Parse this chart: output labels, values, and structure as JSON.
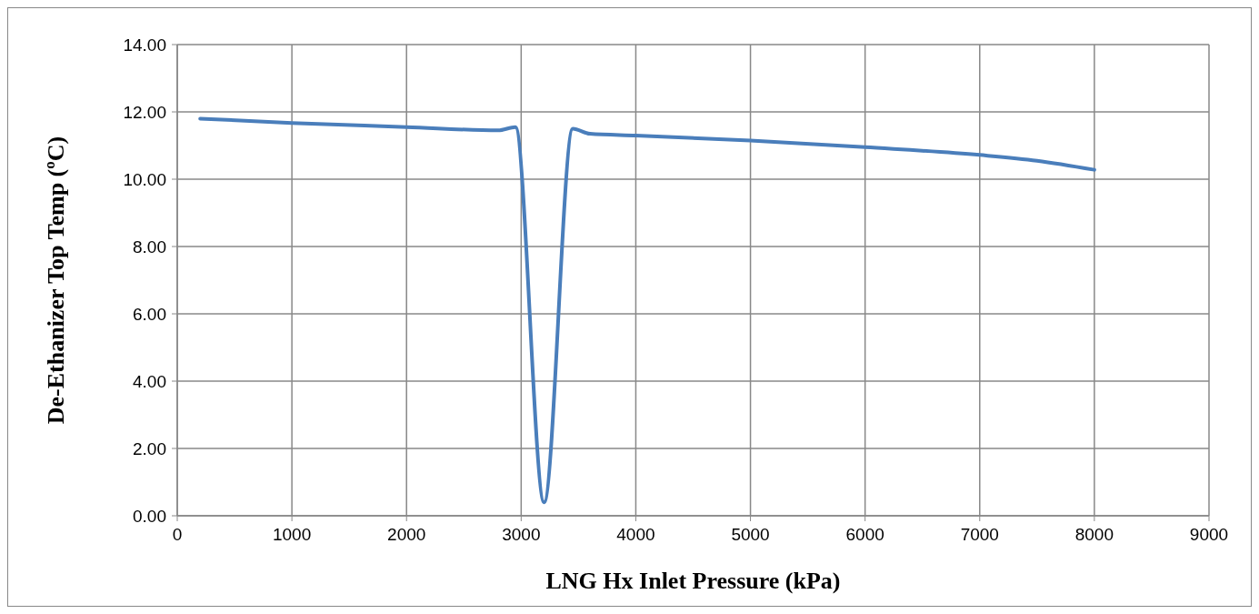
{
  "chart_data": {
    "type": "line",
    "xlabel": "LNG Hx Inlet Pressure (kPa)",
    "ylabel": "De-Ethanizer Top Temp (ºC)",
    "x": [
      200,
      1000,
      2000,
      2800,
      2950,
      3200,
      3450,
      3600,
      4000,
      5000,
      6000,
      7000,
      7500,
      8000
    ],
    "series": [
      {
        "color": "#4a7ebb",
        "values": [
          11.8,
          11.67,
          11.55,
          11.45,
          11.55,
          0.4,
          11.5,
          11.35,
          11.3,
          11.15,
          10.95,
          10.72,
          10.55,
          10.28
        ]
      }
    ],
    "xlim": [
      0,
      9000
    ],
    "xticks": [
      0,
      1000,
      2000,
      3000,
      4000,
      5000,
      6000,
      7000,
      8000,
      9000
    ],
    "ylim": [
      0,
      14
    ],
    "yticks": [
      {
        "value": 0,
        "label": "0.00"
      },
      {
        "value": 2,
        "label": "2.00"
      },
      {
        "value": 4,
        "label": "4.00"
      },
      {
        "value": 6,
        "label": "6.00"
      },
      {
        "value": 8,
        "label": "8.00"
      },
      {
        "value": 10,
        "label": "10.00"
      },
      {
        "value": 12,
        "label": "12.00"
      },
      {
        "value": 14,
        "label": "14.00"
      }
    ],
    "grid": true,
    "marker": "none",
    "line_style": "solid"
  }
}
